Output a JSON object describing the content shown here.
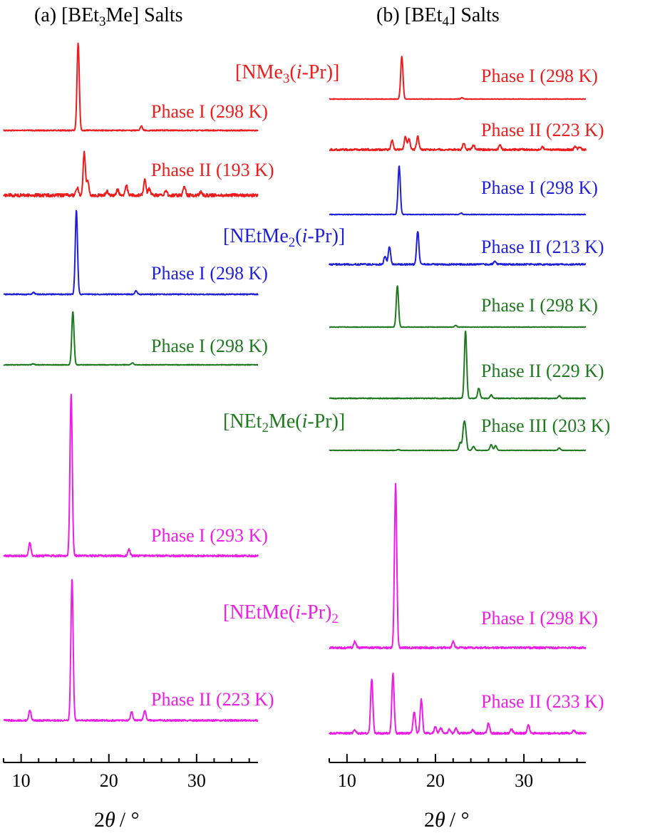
{
  "colors": {
    "red": "#ee1c1c",
    "blue": "#1f1fd9",
    "green": "#1f7a1f",
    "magenta": "#ee1ce6",
    "axis": "#000000"
  },
  "chart_data": [
    {
      "type": "line",
      "title": "(a) [BEt3Me] Salts",
      "title_parts": {
        "pre": "(a) [BEt",
        "sub": "3",
        "post": "Me] Salts"
      },
      "xlabel": "2θ / °",
      "xlabel_parts": {
        "pre": "2",
        "theta": "θ",
        "post": "/ °"
      },
      "xlim": [
        8,
        37
      ],
      "xticks": [
        "10",
        "20",
        "30"
      ],
      "xtick_values": [
        10,
        20,
        30
      ],
      "grid": false,
      "series": [
        {
          "name": "Phase I (298 K)",
          "color": "red",
          "peaks": [
            [
              16.5,
              1.0
            ],
            [
              23.7,
              0.05
            ]
          ]
        },
        {
          "name": "Phase II (193 K)",
          "color": "red",
          "peaks": [
            [
              16.4,
              0.1
            ],
            [
              17.2,
              0.55
            ],
            [
              17.6,
              0.18
            ],
            [
              19.8,
              0.05
            ],
            [
              21.0,
              0.07
            ],
            [
              22.0,
              0.12
            ],
            [
              24.1,
              0.22
            ],
            [
              24.6,
              0.08
            ],
            [
              26.5,
              0.06
            ],
            [
              28.6,
              0.12
            ],
            [
              30.5,
              0.05
            ]
          ],
          "noise": 0.04
        },
        {
          "name": "Phase I (298 K)",
          "color": "blue",
          "peaks": [
            [
              11.4,
              0.02
            ],
            [
              16.3,
              1.0
            ],
            [
              23.1,
              0.04
            ]
          ]
        },
        {
          "name": "Phase I (298 K)",
          "color": "green",
          "peaks": [
            [
              11.4,
              0.02
            ],
            [
              15.9,
              1.0
            ],
            [
              22.7,
              0.04
            ]
          ]
        },
        {
          "name": "Phase I (293 K)",
          "color": "magenta",
          "peaks": [
            [
              11.0,
              0.08
            ],
            [
              15.7,
              1.0
            ],
            [
              22.3,
              0.04
            ]
          ]
        },
        {
          "name": "Phase II (223 K)",
          "color": "magenta",
          "peaks": [
            [
              11.0,
              0.07
            ],
            [
              15.8,
              1.0
            ],
            [
              22.6,
              0.06
            ],
            [
              24.1,
              0.07
            ]
          ]
        }
      ]
    },
    {
      "type": "line",
      "title": "(b) [BEt4] Salts",
      "title_parts": {
        "pre": "(b) [BEt",
        "sub": "4",
        "post": "] Salts"
      },
      "xlabel": "2θ / °",
      "xlabel_parts": {
        "pre": "2",
        "theta": "θ",
        "post": "/ °"
      },
      "xlim": [
        8,
        37
      ],
      "xticks": [
        "10",
        "20",
        "30"
      ],
      "xtick_values": [
        10,
        20,
        30
      ],
      "grid": false,
      "cations": [
        {
          "color": "red",
          "parts": [
            "[NMe",
            "3",
            "(",
            "i",
            "-Pr)]"
          ]
        },
        {
          "color": "blue",
          "parts": [
            "[NEtMe",
            "2",
            "(",
            "i",
            "-Pr)]"
          ]
        },
        {
          "color": "green",
          "parts": [
            "[NEt",
            "2",
            "Me(",
            "i",
            "-Pr)]"
          ]
        },
        {
          "color": "magenta",
          "parts": [
            "[NEtMe(",
            "i",
            "-Pr)",
            "2",
            ""
          ]
        }
      ],
      "series": [
        {
          "name": "Phase I (298 K)",
          "color": "red",
          "peaks": [
            [
              16.2,
              1.0
            ],
            [
              23.0,
              0.03
            ]
          ]
        },
        {
          "name": "Phase II (223 K)",
          "color": "red",
          "peaks": [
            [
              15.1,
              0.3
            ],
            [
              16.6,
              0.4
            ],
            [
              17.0,
              0.35
            ],
            [
              18.0,
              0.4
            ],
            [
              23.2,
              0.2
            ],
            [
              24.3,
              0.15
            ],
            [
              27.3,
              0.13
            ],
            [
              32.1,
              0.08
            ],
            [
              35.8,
              0.1
            ],
            [
              36.3,
              0.08
            ]
          ],
          "noise": 0.06
        },
        {
          "name": "Phase I (298 K)",
          "color": "blue",
          "peaks": [
            [
              15.9,
              1.0
            ],
            [
              22.9,
              0.03
            ]
          ]
        },
        {
          "name": "Phase II (213 K)",
          "color": "blue",
          "peaks": [
            [
              14.3,
              0.2
            ],
            [
              14.8,
              0.45
            ],
            [
              18.0,
              0.85
            ],
            [
              26.7,
              0.08
            ]
          ],
          "noise": 0.04
        },
        {
          "name": "Phase I (298 K)",
          "color": "green",
          "peaks": [
            [
              15.7,
              1.0
            ],
            [
              22.3,
              0.04
            ]
          ]
        },
        {
          "name": "Phase II (229 K)",
          "color": "green",
          "peaks": [
            [
              23.4,
              1.0
            ],
            [
              24.9,
              0.15
            ],
            [
              26.3,
              0.05
            ],
            [
              34.0,
              0.04
            ]
          ]
        },
        {
          "name": "Phase III (203 K)",
          "color": "green",
          "peaks": [
            [
              15.8,
              0.02
            ],
            [
              22.8,
              0.2
            ],
            [
              23.2,
              0.55
            ],
            [
              23.4,
              0.45
            ],
            [
              24.3,
              0.1
            ],
            [
              26.3,
              0.15
            ],
            [
              26.8,
              0.12
            ],
            [
              34.0,
              0.06
            ]
          ]
        },
        {
          "name": "Phase I (298 K)",
          "color": "magenta",
          "peaks": [
            [
              10.9,
              0.04
            ],
            [
              15.5,
              1.0
            ],
            [
              22.0,
              0.04
            ]
          ]
        },
        {
          "name": "Phase II (233 K)",
          "color": "magenta",
          "peaks": [
            [
              10.9,
              0.05
            ],
            [
              12.8,
              0.8
            ],
            [
              15.2,
              0.88
            ],
            [
              17.6,
              0.32
            ],
            [
              18.4,
              0.5
            ],
            [
              20.0,
              0.1
            ],
            [
              20.6,
              0.08
            ],
            [
              21.6,
              0.06
            ],
            [
              22.3,
              0.07
            ],
            [
              24.2,
              0.05
            ],
            [
              26.0,
              0.15
            ],
            [
              28.6,
              0.06
            ],
            [
              30.5,
              0.12
            ],
            [
              35.6,
              0.05
            ]
          ],
          "noise": 0.03
        }
      ]
    }
  ]
}
